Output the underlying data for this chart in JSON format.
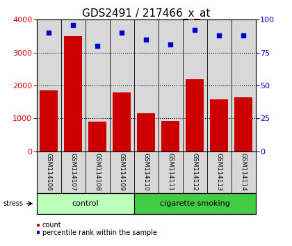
{
  "title": "GDS2491 / 217466_x_at",
  "samples": [
    "GSM114106",
    "GSM114107",
    "GSM114108",
    "GSM114109",
    "GSM114110",
    "GSM114111",
    "GSM114112",
    "GSM114113",
    "GSM114114"
  ],
  "counts": [
    1850,
    3500,
    900,
    1780,
    1150,
    920,
    2200,
    1580,
    1650
  ],
  "percentiles": [
    90,
    96,
    80,
    90,
    85,
    81,
    92,
    88,
    88
  ],
  "bar_color": "#cc0000",
  "dot_color": "#0000cc",
  "ylim_left": [
    0,
    4000
  ],
  "ylim_right": [
    0,
    100
  ],
  "yticks_left": [
    0,
    1000,
    2000,
    3000,
    4000
  ],
  "yticks_right": [
    0,
    25,
    50,
    75,
    100
  ],
  "groups": [
    {
      "label": "control",
      "start": 0,
      "end": 4,
      "color": "#bbffbb"
    },
    {
      "label": "cigarette smoking",
      "start": 4,
      "end": 9,
      "color": "#44cc44"
    }
  ],
  "stress_label": "stress",
  "legend_count": "count",
  "legend_percentile": "percentile rank within the sample",
  "background_color": "#ffffff",
  "plot_bg_color": "#d8d8d8",
  "grid_color": "#000000",
  "title_fontsize": 11,
  "tick_fontsize": 7,
  "label_fontsize": 8,
  "sample_label_fontsize": 6.5
}
